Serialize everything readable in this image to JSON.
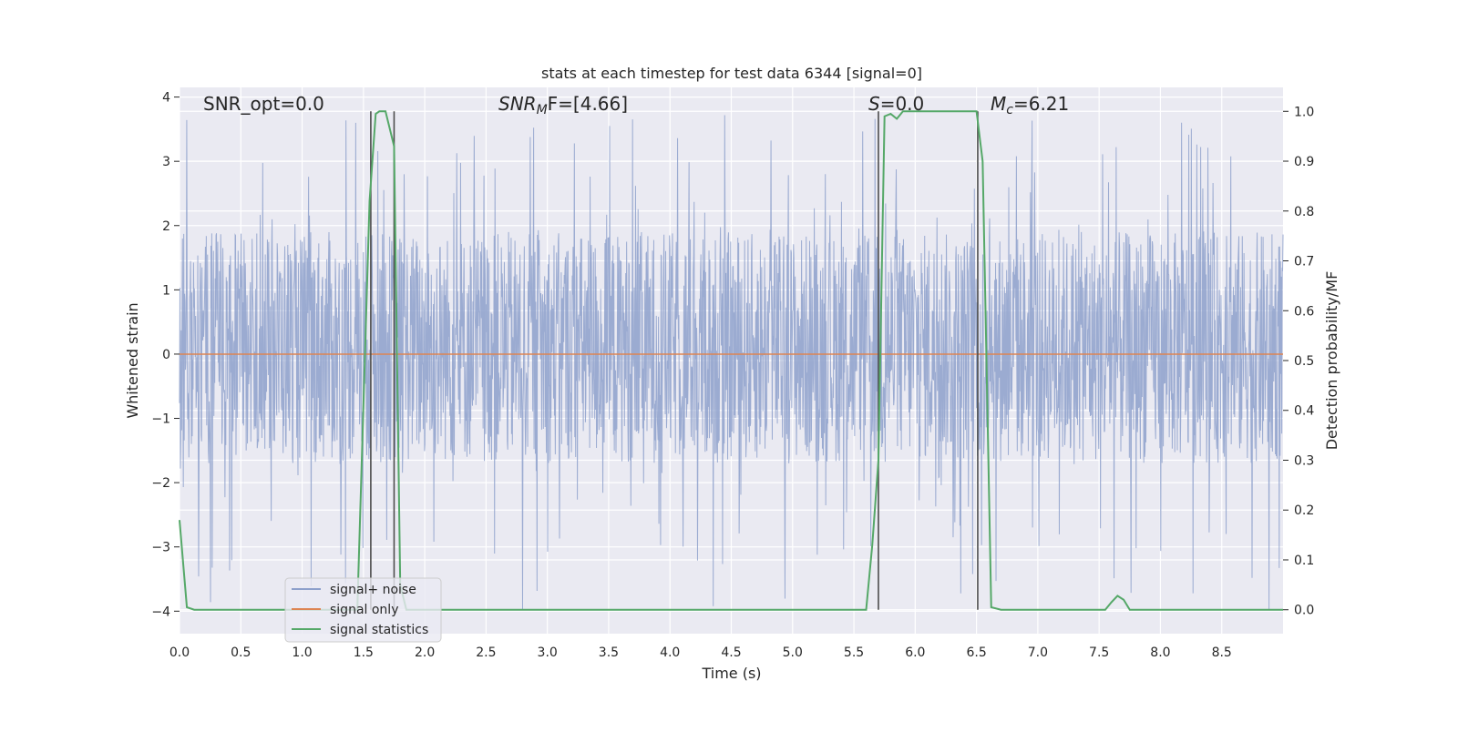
{
  "chart_data": {
    "type": "line",
    "title": "stats at each timestep for test data 6344 [signal=0]",
    "xlabel": "Time (s)",
    "ylabel": "Whitened strain",
    "ylabel_right": "Detection probability/MF",
    "xlim": [
      0.0,
      9.0
    ],
    "ylim": [
      -4.35,
      4.15
    ],
    "ylim_right": [
      -0.048,
      1.048
    ],
    "x_ticks": [
      "0.0",
      "0.5",
      "1.0",
      "1.5",
      "2.0",
      "2.5",
      "3.0",
      "3.5",
      "4.0",
      "4.5",
      "5.0",
      "5.5",
      "6.0",
      "6.5",
      "7.0",
      "7.5",
      "8.0",
      "8.5"
    ],
    "x_tick_values": [
      0.0,
      0.5,
      1.0,
      1.5,
      2.0,
      2.5,
      3.0,
      3.5,
      4.0,
      4.5,
      5.0,
      5.5,
      6.0,
      6.5,
      7.0,
      7.5,
      8.0,
      8.5
    ],
    "y_ticks": [
      "4",
      "3",
      "2",
      "1",
      "0",
      "−1",
      "−2",
      "−3",
      "−4"
    ],
    "y_tick_values": [
      4,
      3,
      2,
      1,
      0,
      -1,
      -2,
      -3,
      -4
    ],
    "y_right_ticks": [
      "1.0",
      "0.9",
      "0.8",
      "0.7",
      "0.6",
      "0.5",
      "0.4",
      "0.3",
      "0.2",
      "0.1",
      "0.0"
    ],
    "y_right_tick_values": [
      1.0,
      0.9,
      0.8,
      0.7,
      0.6,
      0.5,
      0.4,
      0.3,
      0.2,
      0.1,
      0.0
    ],
    "grid": true,
    "legend_position": "lower-left",
    "annotations": {
      "snr_opt": "SNR_opt=0.0",
      "snr_mf_sym": "SNR",
      "snr_mf_sub": "M",
      "snr_mf_rest": "F=[4.66]",
      "s_sym": "S",
      "s_rest": "=0.0",
      "mc_sym": "M",
      "mc_sub": "c",
      "mc_rest": "=6.21"
    },
    "series": [
      {
        "name": "signal+ noise",
        "color": "#8da0cb",
        "kind": "noise",
        "x_range": [
          0.0,
          9.0
        ],
        "typical_range": [
          -1.7,
          1.9
        ],
        "extreme_range": [
          -4.0,
          3.75
        ]
      },
      {
        "name": "signal only",
        "color": "#dd8452",
        "x": [
          0.0,
          9.0
        ],
        "y": [
          0.0,
          0.0
        ]
      },
      {
        "name": "signal statistics",
        "color": "#55a868",
        "axis": "right",
        "x": [
          0.0,
          0.06,
          0.12,
          1.45,
          1.55,
          1.6,
          1.63,
          1.68,
          1.75,
          1.8,
          1.85,
          5.6,
          5.65,
          5.7,
          5.75,
          5.8,
          5.85,
          5.9,
          5.95,
          6.5,
          6.55,
          6.62,
          6.7,
          7.55,
          7.6,
          7.65,
          7.7,
          7.75,
          9.0
        ],
        "y": [
          0.18,
          0.005,
          0.0,
          0.0,
          0.82,
          0.995,
          1.0,
          1.0,
          0.93,
          0.05,
          0.0,
          0.0,
          0.13,
          0.3,
          0.99,
          0.995,
          0.985,
          1.0,
          1.0,
          1.0,
          0.9,
          0.005,
          0.0,
          0.0,
          0.015,
          0.028,
          0.02,
          0.0,
          0.0
        ]
      }
    ],
    "vertical_markers": [
      1.56,
      1.75,
      5.7,
      6.51
    ],
    "marker_color": "#4c4c4c"
  }
}
